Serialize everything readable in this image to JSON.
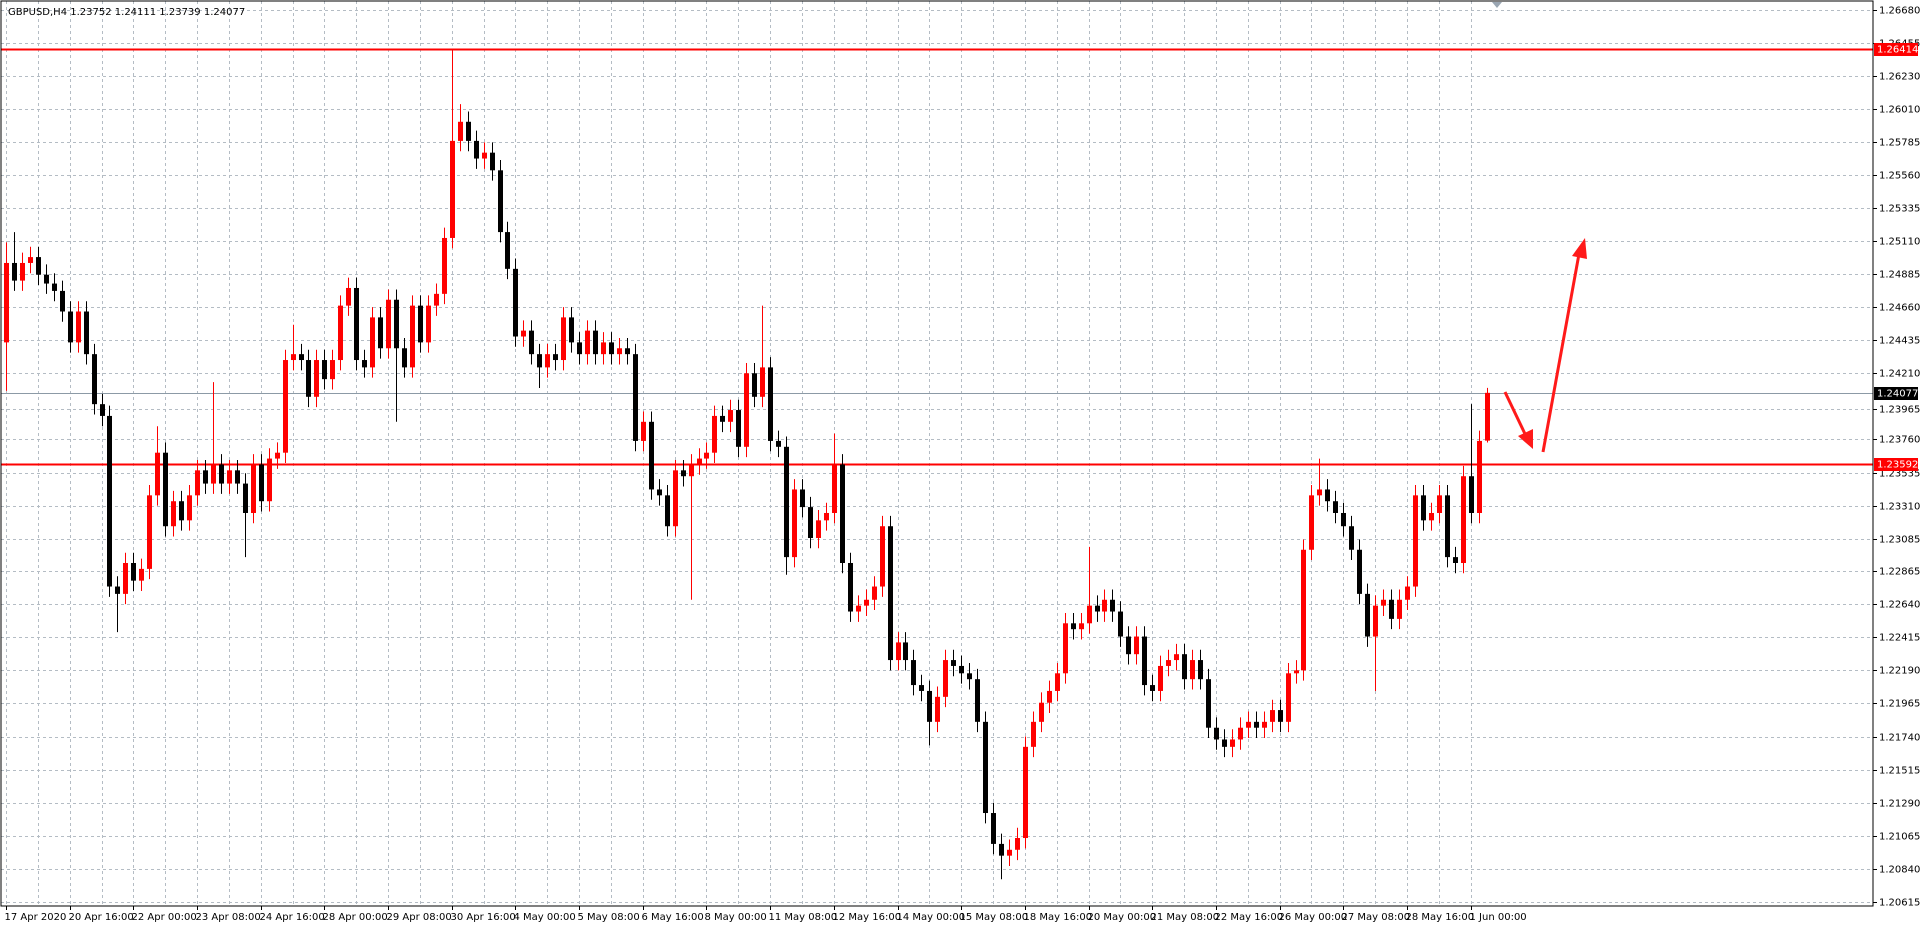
{
  "chart_data": {
    "type": "candlestick",
    "title": "GBPUSD,H4  1.23752 1.24111 1.23739 1.24077",
    "up_color": "#ff0000",
    "down_color": "#000000",
    "grid": true,
    "ylim": [
      1.20615,
      1.2668
    ],
    "yticks": [
      {
        "value": 1.2668,
        "label": "1.26680"
      },
      {
        "value": 1.26455,
        "label": "1.26455"
      },
      {
        "value": 1.2623,
        "label": "1.26230"
      },
      {
        "value": 1.2601,
        "label": "1.26010"
      },
      {
        "value": 1.25785,
        "label": "1.25785"
      },
      {
        "value": 1.2556,
        "label": "1.25560"
      },
      {
        "value": 1.25335,
        "label": "1.25335"
      },
      {
        "value": 1.2511,
        "label": "1.25110"
      },
      {
        "value": 1.24885,
        "label": "1.24885"
      },
      {
        "value": 1.2466,
        "label": "1.24660"
      },
      {
        "value": 1.24435,
        "label": "1.24435"
      },
      {
        "value": 1.2421,
        "label": "1.24210"
      },
      {
        "value": 1.23965,
        "label": "1.23965"
      },
      {
        "value": 1.2376,
        "label": "1.23760"
      },
      {
        "value": 1.23535,
        "label": "1.23535"
      },
      {
        "value": 1.2331,
        "label": "1.23310"
      },
      {
        "value": 1.23085,
        "label": "1.23085"
      },
      {
        "value": 1.22865,
        "label": "1.22865"
      },
      {
        "value": 1.2264,
        "label": "1.22640"
      },
      {
        "value": 1.22415,
        "label": "1.22415"
      },
      {
        "value": 1.2219,
        "label": "1.22190"
      },
      {
        "value": 1.21965,
        "label": "1.21965"
      },
      {
        "value": 1.2174,
        "label": "1.21740"
      },
      {
        "value": 1.21515,
        "label": "1.21515"
      },
      {
        "value": 1.2129,
        "label": "1.21290"
      },
      {
        "value": 1.21065,
        "label": "1.21065"
      },
      {
        "value": 1.2084,
        "label": "1.20840"
      },
      {
        "value": 1.20615,
        "label": "1.20615"
      }
    ],
    "hlines": [
      {
        "value": 1.26414,
        "color": "#ff0000"
      },
      {
        "value": 1.23592,
        "color": "#ff0000"
      },
      {
        "value": 1.24077,
        "color": "#8c9aa6",
        "label_color": "#000000"
      }
    ],
    "categories": [
      "17 Apr 2020",
      null,
      null,
      null,
      null,
      null,
      null,
      null,
      "20 Apr 16:00",
      null,
      null,
      null,
      null,
      null,
      null,
      null,
      "22 Apr 00:00",
      null,
      null,
      null,
      null,
      null,
      null,
      null,
      "23 Apr 08:00",
      null,
      null,
      null,
      null,
      null,
      null,
      null,
      "24 Apr 16:00",
      null,
      null,
      null,
      null,
      null,
      null,
      null,
      "28 Apr 00:00",
      null,
      null,
      null,
      null,
      null,
      null,
      null,
      "29 Apr 08:00",
      null,
      null,
      null,
      null,
      null,
      null,
      null,
      "30 Apr 16:00",
      null,
      null,
      null,
      null,
      null,
      null,
      null,
      "4 May 00:00",
      null,
      null,
      null,
      null,
      null,
      null,
      null,
      "5 May 08:00",
      null,
      null,
      null,
      null,
      null,
      null,
      null,
      "6 May 16:00",
      null,
      null,
      null,
      null,
      null,
      null,
      null,
      "8 May 00:00",
      null,
      null,
      null,
      null,
      null,
      null,
      null,
      "11 May 08:00",
      null,
      null,
      null,
      null,
      null,
      null,
      null,
      "12 May 16:00",
      null,
      null,
      null,
      null,
      null,
      null,
      null,
      "14 May 00:00",
      null,
      null,
      null,
      null,
      null,
      null,
      null,
      "15 May 08:00",
      null,
      null,
      null,
      null,
      null,
      null,
      null,
      "18 May 16:00",
      null,
      null,
      null,
      null,
      null,
      null,
      null,
      "20 May 00:00",
      null,
      null,
      null,
      null,
      null,
      null,
      null,
      "21 May 08:00",
      null,
      null,
      null,
      null,
      null,
      null,
      null,
      "22 May 16:00",
      null,
      null,
      null,
      null,
      null,
      null,
      null,
      "26 May 00:00",
      null,
      null,
      null,
      null,
      null,
      null,
      null,
      "27 May 08:00",
      null,
      null,
      null,
      null,
      null,
      null,
      null,
      "28 May 16:00",
      null,
      null,
      null,
      null,
      null,
      null,
      null,
      "1 Jun 00:00",
      null,
      null
    ],
    "open": [
      1.2442,
      1.2496,
      1.2484,
      1.2496,
      1.25,
      1.2488,
      1.2482,
      1.2477,
      1.2463,
      1.2442,
      1.2463,
      1.2434,
      1.24,
      1.2392,
      1.2276,
      1.2271,
      1.2292,
      1.228,
      1.2288,
      1.2338,
      1.2367,
      1.2317,
      1.2334,
      1.2321,
      1.2338,
      1.2355,
      1.2346,
      1.2359,
      1.2346,
      1.2355,
      1.2346,
      1.2326,
      1.2359,
      1.2334,
      1.2363,
      1.2367,
      1.243,
      1.2434,
      1.243,
      1.2405,
      1.243,
      1.2417,
      1.243,
      1.2467,
      1.2479,
      1.243,
      1.2425,
      1.2459,
      1.2438,
      1.2471,
      1.2438,
      1.2425,
      1.2467,
      1.2442,
      1.2467,
      1.2475,
      1.2513,
      1.2579,
      1.2592,
      1.2579,
      1.2567,
      1.2571,
      1.2559,
      1.2517,
      1.2492,
      1.2446,
      1.245,
      1.2434,
      1.2425,
      1.2434,
      1.243,
      1.2459,
      1.2442,
      1.2434,
      1.245,
      1.2434,
      1.2442,
      1.2434,
      1.2438,
      1.2434,
      1.2375,
      1.2388,
      1.2342,
      1.2338,
      1.2317,
      1.2355,
      1.2351,
      1.2359,
      1.2363,
      1.2367,
      1.2392,
      1.2388,
      1.2396,
      1.2371,
      1.2421,
      1.2405,
      1.2425,
      1.2375,
      1.2371,
      1.2296,
      1.2342,
      1.233,
      1.2309,
      1.2321,
      1.2326,
      1.2359,
      1.2292,
      1.2259,
      1.2263,
      1.2267,
      1.2276,
      1.2317,
      1.2226,
      1.2238,
      1.2226,
      1.2209,
      1.2205,
      1.2184,
      1.2201,
      1.2226,
      1.2222,
      1.2217,
      1.2213,
      1.2184,
      1.2122,
      1.2101,
      1.2093,
      1.2097,
      1.2105,
      1.2167,
      1.2184,
      1.2197,
      1.2205,
      1.2217,
      1.2251,
      1.2247,
      1.2251,
      1.2263,
      1.2259,
      1.2267,
      1.2259,
      1.2242,
      1.223,
      1.2242,
      1.2209,
      1.2205,
      1.2222,
      1.2226,
      1.223,
      1.2213,
      1.2226,
      1.2213,
      1.218,
      1.2172,
      1.2167,
      1.2172,
      1.218,
      1.2184,
      1.218,
      1.2184,
      1.2192,
      1.2184,
      1.2217,
      1.2219,
      1.2301,
      1.2338,
      1.2342,
      1.2334,
      1.2326,
      1.2317,
      1.2301,
      1.2271,
      1.2242,
      1.2263,
      1.2267,
      1.2254,
      1.2267,
      1.2276,
      1.2338,
      1.2321,
      1.2326,
      1.2338,
      1.2296,
      1.2292,
      1.2351,
      1.2326,
      1.23752
    ],
    "high": [
      1.251,
      1.2517,
      1.2503,
      1.2507,
      1.2507,
      1.2495,
      1.2489,
      1.2484,
      1.247,
      1.247,
      1.247,
      1.2441,
      1.2407,
      1.2399,
      1.2283,
      1.2299,
      1.2299,
      1.2295,
      1.2345,
      1.2385,
      1.2374,
      1.2341,
      1.2341,
      1.2345,
      1.2362,
      1.2362,
      1.2415,
      1.2366,
      1.2362,
      1.2362,
      1.2353,
      1.2366,
      1.2366,
      1.237,
      1.2374,
      1.2437,
      1.2454,
      1.2441,
      1.2437,
      1.2437,
      1.2437,
      1.2437,
      1.2474,
      1.2486,
      1.2486,
      1.2437,
      1.2466,
      1.2466,
      1.2478,
      1.2478,
      1.2445,
      1.2474,
      1.2474,
      1.2474,
      1.2482,
      1.252,
      1.2641,
      1.2604,
      1.2599,
      1.2586,
      1.2578,
      1.2578,
      1.2566,
      1.2524,
      1.2499,
      1.2457,
      1.2457,
      1.2441,
      1.2441,
      1.2441,
      1.2466,
      1.2466,
      1.2449,
      1.2457,
      1.2457,
      1.2449,
      1.2449,
      1.2445,
      1.2445,
      1.2441,
      1.2395,
      1.2395,
      1.2349,
      1.2345,
      1.2362,
      1.2362,
      1.2366,
      1.237,
      1.2374,
      1.2399,
      1.2399,
      1.2403,
      1.2403,
      1.2428,
      1.2428,
      1.2467,
      1.2432,
      1.2382,
      1.2378,
      1.2349,
      1.2349,
      1.2337,
      1.2328,
      1.2333,
      1.238,
      1.2366,
      1.2299,
      1.227,
      1.2274,
      1.2283,
      1.2324,
      1.2324,
      1.2245,
      1.2245,
      1.2233,
      1.2216,
      1.2212,
      1.2208,
      1.2233,
      1.2233,
      1.2229,
      1.2224,
      1.222,
      1.2191,
      1.2129,
      1.2108,
      1.2104,
      1.2112,
      1.2174,
      1.2191,
      1.2204,
      1.2212,
      1.2224,
      1.2258,
      1.2258,
      1.2258,
      1.2303,
      1.227,
      1.2274,
      1.2274,
      1.2266,
      1.2249,
      1.2249,
      1.2249,
      1.2216,
      1.2229,
      1.2233,
      1.2237,
      1.2237,
      1.2233,
      1.2233,
      1.222,
      1.2187,
      1.2179,
      1.2179,
      1.2187,
      1.2191,
      1.2191,
      1.2191,
      1.2199,
      1.2199,
      1.2224,
      1.2226,
      1.2308,
      1.2345,
      1.2363,
      1.2349,
      1.2341,
      1.2333,
      1.2324,
      1.2308,
      1.2278,
      1.227,
      1.2274,
      1.2274,
      1.2274,
      1.2283,
      1.2345,
      1.2345,
      1.2333,
      1.2345,
      1.2345,
      1.2303,
      1.2358,
      1.24,
      1.2382,
      1.24111
    ],
    "low": [
      1.2409,
      1.2477,
      1.2477,
      1.2489,
      1.2481,
      1.2475,
      1.247,
      1.2456,
      1.2435,
      1.2435,
      1.2427,
      1.2393,
      1.2385,
      1.2269,
      1.2245,
      1.2264,
      1.2273,
      1.2273,
      1.2281,
      1.2331,
      1.231,
      1.231,
      1.2314,
      1.2314,
      1.2331,
      1.2339,
      1.2339,
      1.2339,
      1.2339,
      1.2339,
      1.2296,
      1.2319,
      1.2327,
      1.2327,
      1.2356,
      1.236,
      1.2423,
      1.2423,
      1.2398,
      1.2398,
      1.241,
      1.241,
      1.2423,
      1.246,
      1.2423,
      1.2418,
      1.2418,
      1.2431,
      1.2431,
      1.2388,
      1.2418,
      1.2418,
      1.2435,
      1.2435,
      1.246,
      1.2468,
      1.2506,
      1.2572,
      1.2572,
      1.256,
      1.256,
      1.2552,
      1.251,
      1.2485,
      1.2439,
      1.2439,
      1.2427,
      1.2411,
      1.2418,
      1.2423,
      1.2423,
      1.2435,
      1.2427,
      1.2427,
      1.2427,
      1.2427,
      1.2427,
      1.2427,
      1.2427,
      1.2368,
      1.2368,
      1.2335,
      1.2331,
      1.231,
      1.231,
      1.2344,
      1.2267,
      1.2352,
      1.2356,
      1.236,
      1.2381,
      1.2381,
      1.2364,
      1.2364,
      1.2398,
      1.2398,
      1.2368,
      1.2364,
      1.2284,
      1.2289,
      1.2323,
      1.2302,
      1.2302,
      1.2314,
      1.2319,
      1.2285,
      1.2252,
      1.2252,
      1.2256,
      1.226,
      1.2269,
      1.2219,
      1.2219,
      1.2219,
      1.2202,
      1.2198,
      1.2168,
      1.2177,
      1.2194,
      1.2215,
      1.221,
      1.2206,
      1.2177,
      1.2115,
      1.2094,
      1.2077,
      1.2086,
      1.209,
      1.2098,
      1.216,
      1.2177,
      1.219,
      1.2198,
      1.221,
      1.224,
      1.224,
      1.2244,
      1.2252,
      1.2252,
      1.2252,
      1.2235,
      1.2223,
      1.2223,
      1.2202,
      1.2198,
      1.2198,
      1.2215,
      1.2219,
      1.2206,
      1.2206,
      1.2206,
      1.2173,
      1.2165,
      1.216,
      1.216,
      1.2165,
      1.2173,
      1.2173,
      1.2173,
      1.2177,
      1.2177,
      1.2177,
      1.221,
      1.2212,
      1.2294,
      1.2331,
      1.2327,
      1.2319,
      1.231,
      1.2294,
      1.2264,
      1.2235,
      1.2205,
      1.2256,
      1.2247,
      1.2247,
      1.226,
      1.2269,
      1.2314,
      1.2314,
      1.2319,
      1.2289,
      1.2285,
      1.2285,
      1.2319,
      1.2319,
      1.23739
    ],
    "close": [
      1.2496,
      1.2484,
      1.2496,
      1.25,
      1.2488,
      1.2482,
      1.2477,
      1.2463,
      1.2442,
      1.2463,
      1.2434,
      1.24,
      1.2392,
      1.2276,
      1.2271,
      1.2292,
      1.228,
      1.2288,
      1.2338,
      1.2367,
      1.2317,
      1.2334,
      1.2321,
      1.2338,
      1.2355,
      1.2346,
      1.2359,
      1.2346,
      1.2355,
      1.2346,
      1.2326,
      1.2359,
      1.2334,
      1.2363,
      1.2367,
      1.243,
      1.2434,
      1.243,
      1.2405,
      1.243,
      1.2417,
      1.243,
      1.2467,
      1.2479,
      1.243,
      1.2425,
      1.2459,
      1.2438,
      1.2471,
      1.2438,
      1.2425,
      1.2467,
      1.2442,
      1.2467,
      1.2475,
      1.2513,
      1.2579,
      1.2592,
      1.2579,
      1.2567,
      1.2571,
      1.2559,
      1.2517,
      1.2492,
      1.2446,
      1.245,
      1.2434,
      1.2425,
      1.2434,
      1.243,
      1.2459,
      1.2442,
      1.2434,
      1.245,
      1.2434,
      1.2442,
      1.2434,
      1.2438,
      1.2434,
      1.2375,
      1.2388,
      1.2342,
      1.2338,
      1.2317,
      1.2355,
      1.2351,
      1.2359,
      1.2363,
      1.2367,
      1.2392,
      1.2388,
      1.2396,
      1.2371,
      1.2421,
      1.2405,
      1.2425,
      1.2375,
      1.2371,
      1.2296,
      1.2342,
      1.233,
      1.2309,
      1.2321,
      1.2326,
      1.2359,
      1.2292,
      1.2259,
      1.2263,
      1.2267,
      1.2276,
      1.2317,
      1.2226,
      1.2238,
      1.2226,
      1.2209,
      1.2205,
      1.2184,
      1.2201,
      1.2226,
      1.2222,
      1.2217,
      1.2213,
      1.2184,
      1.2122,
      1.2101,
      1.2093,
      1.2097,
      1.2105,
      1.2167,
      1.2184,
      1.2197,
      1.2205,
      1.2217,
      1.2251,
      1.2247,
      1.2251,
      1.2263,
      1.2259,
      1.2267,
      1.2259,
      1.2242,
      1.223,
      1.2242,
      1.2209,
      1.2205,
      1.2222,
      1.2226,
      1.223,
      1.2213,
      1.2226,
      1.2213,
      1.218,
      1.2172,
      1.2167,
      1.2172,
      1.218,
      1.2184,
      1.218,
      1.2184,
      1.2192,
      1.2184,
      1.2217,
      1.2219,
      1.2301,
      1.2338,
      1.2342,
      1.2334,
      1.2326,
      1.2317,
      1.2301,
      1.2271,
      1.2242,
      1.2263,
      1.2267,
      1.2254,
      1.2267,
      1.2276,
      1.2338,
      1.2321,
      1.2326,
      1.2338,
      1.2296,
      1.2292,
      1.2351,
      1.2326,
      1.2375,
      1.24077
    ]
  }
}
